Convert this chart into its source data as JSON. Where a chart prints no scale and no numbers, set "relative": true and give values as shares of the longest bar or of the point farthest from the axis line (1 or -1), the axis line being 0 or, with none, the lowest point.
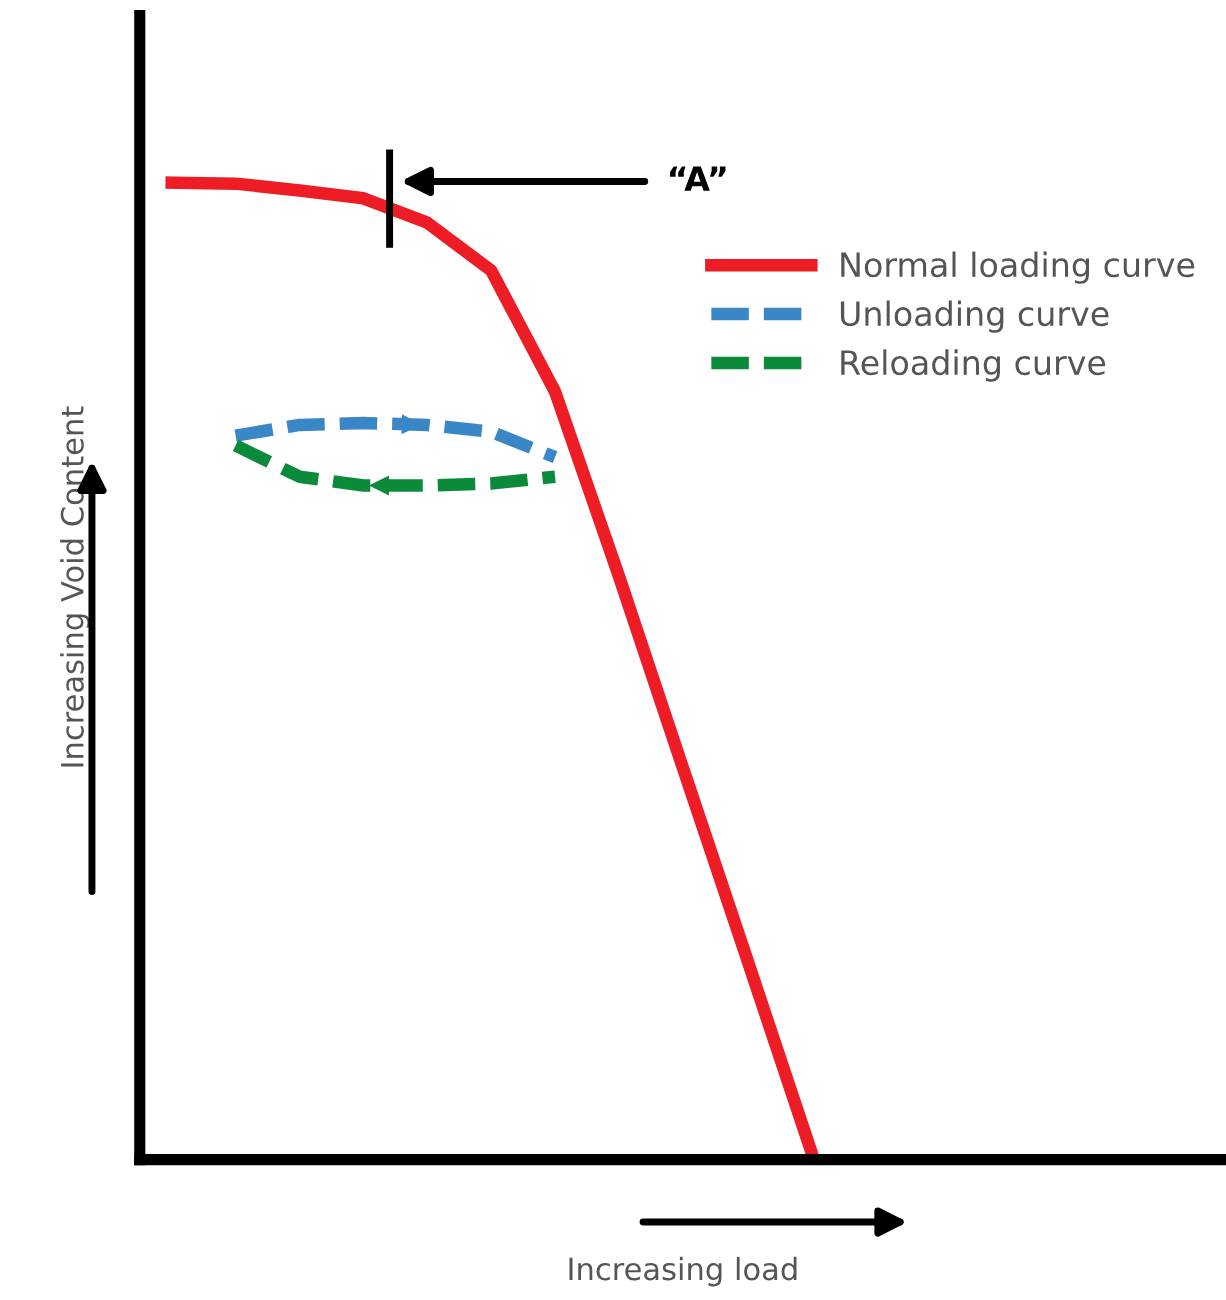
{
  "chart_data": {
    "type": "line",
    "relative": true,
    "xlabel": "Increasing load",
    "ylabel": "Increasing Void Content",
    "legend": "top right",
    "line_style": "solid",
    "marker": "none",
    "grid": false,
    "categories": [
      null,
      null,
      null,
      null,
      null,
      null,
      null,
      null,
      null,
      null,
      null,
      null,
      null,
      null,
      null,
      null,
      null
    ],
    "series": [
      {
        "name": "Normal loading curve",
        "color": "#ee1c25",
        "values": [
          1.0,
          0.999,
          0.992,
          0.984,
          0.959,
          0.91,
          0.786,
          0.597,
          0.401,
          0.206,
          0.01,
          null,
          null,
          null,
          null,
          null,
          null
        ]
      },
      {
        "name": "Unloading curve",
        "color": "#3a87c8",
        "line_style": "dashed",
        "values": [
          null,
          0.741,
          0.752,
          0.754,
          0.752,
          0.745,
          0.719,
          null,
          null,
          null,
          null,
          null,
          null,
          null,
          null,
          null,
          null
        ]
      },
      {
        "name": "Reloading curve",
        "color": "#0b8a3a",
        "line_style": "dashed",
        "values": [
          null,
          0.731,
          0.699,
          0.69,
          0.69,
          0.692,
          0.699,
          null,
          null,
          null,
          null,
          null,
          null,
          null,
          null,
          null,
          null
        ]
      }
    ],
    "annotations": [
      "“A”"
    ]
  }
}
